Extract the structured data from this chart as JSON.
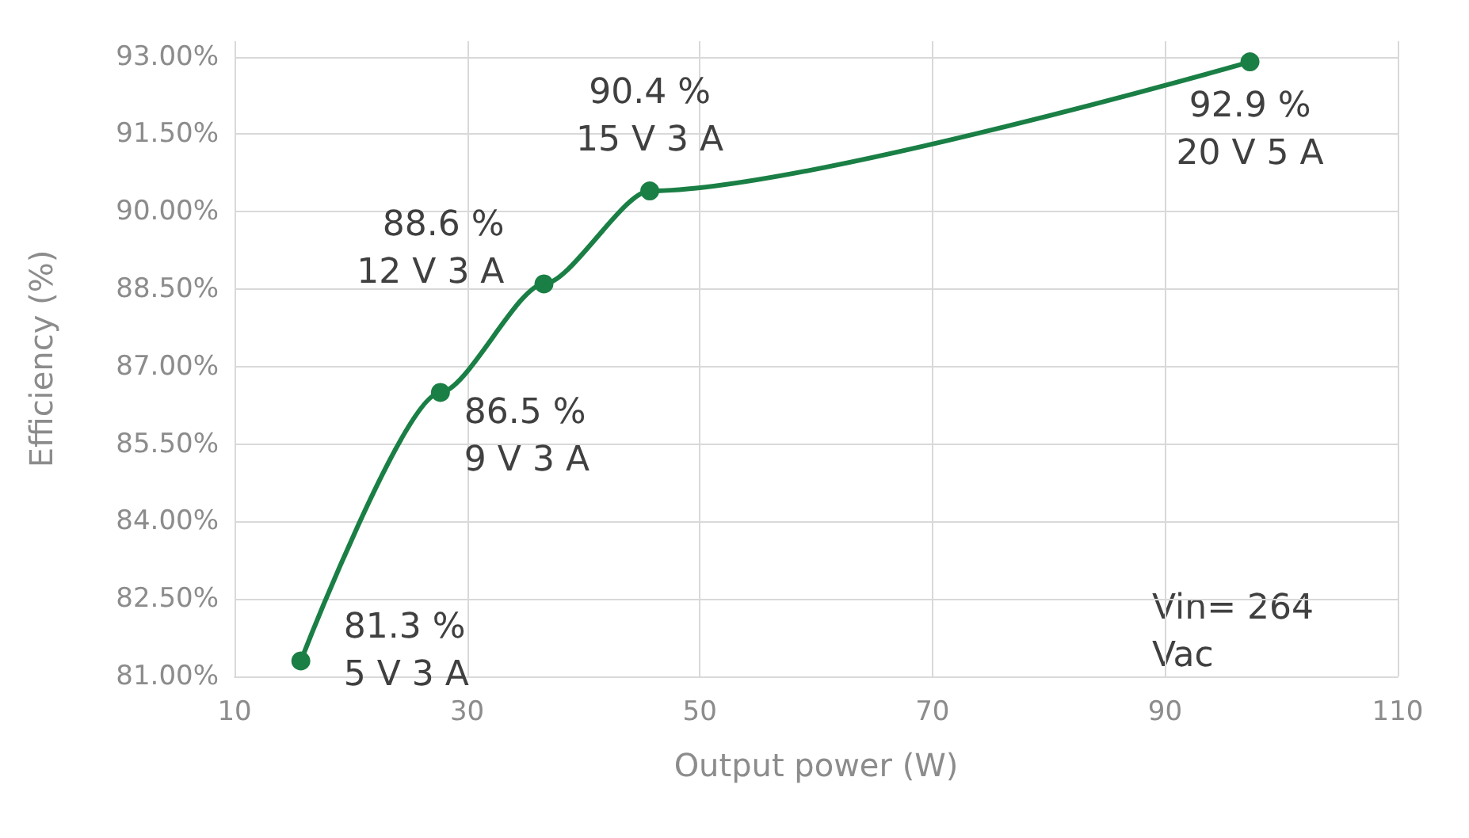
{
  "chart_data": {
    "type": "line",
    "xlabel": "Output power (W)",
    "ylabel": "Efficiency (%)",
    "x": [
      15.7,
      27.7,
      36.6,
      45.7,
      97.3
    ],
    "series": [
      {
        "color": "#1a7f45",
        "values": [
          81.3,
          86.5,
          88.6,
          90.4,
          92.9
        ],
        "value_labels": [
          "81.3 %\n5 V 3 A",
          "86.5 %\n9 V 3 A",
          "88.6 %\n12 V 3 A",
          "90.4 %\n15 V 3 A",
          "92.9 %\n20 V 5 A"
        ]
      }
    ],
    "xlim": [
      10,
      110
    ],
    "xticks": [
      10,
      30,
      50,
      70,
      90,
      110
    ],
    "ylim": [
      81,
      93.3
    ],
    "yticks": [
      {
        "value": 81,
        "label": "81.00%"
      },
      {
        "value": 82.5,
        "label": "82.50%"
      },
      {
        "value": 84,
        "label": "84.00%"
      },
      {
        "value": 85.5,
        "label": "85.50%"
      },
      {
        "value": 87,
        "label": "87.00%"
      },
      {
        "value": 88.5,
        "label": "88.50%"
      },
      {
        "value": 90,
        "label": "90.00%"
      },
      {
        "value": 91.5,
        "label": "91.50%"
      },
      {
        "value": 93,
        "label": "93.00%"
      }
    ],
    "annotations": [
      "Vin= 264\nVac"
    ],
    "grid": true,
    "marker": "circle",
    "line_style": "solid"
  }
}
